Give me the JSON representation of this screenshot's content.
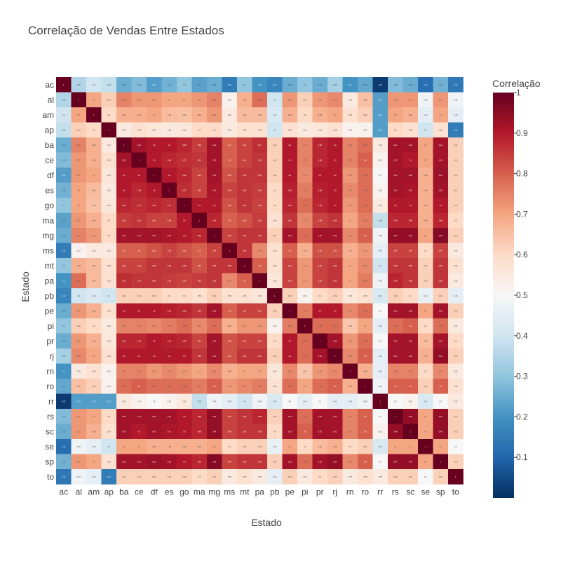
{
  "chart_data": {
    "type": "heatmap",
    "title": "Correlação de Vendas Entre Estados",
    "xlabel": "Estado",
    "ylabel": "Estado",
    "colorbar_title": "Correlação",
    "colorscale": "RdBu (reversed)",
    "zlim": [
      0.0,
      1.0
    ],
    "colorbar_ticks": [
      0.1,
      0.2,
      0.3,
      0.4,
      0.5,
      0.6,
      0.7,
      0.8,
      0.9,
      1
    ],
    "states": [
      "ac",
      "al",
      "am",
      "ap",
      "ba",
      "ce",
      "df",
      "es",
      "go",
      "ma",
      "mg",
      "ms",
      "mt",
      "pa",
      "pb",
      "pe",
      "pi",
      "pr",
      "rj",
      "rn",
      "ro",
      "rr",
      "rs",
      "sc",
      "se",
      "sp",
      "to"
    ],
    "z": [
      [
        1.0,
        0.35,
        0.4,
        0.38,
        0.25,
        0.28,
        0.22,
        0.26,
        0.3,
        0.23,
        0.25,
        0.15,
        0.3,
        0.2,
        0.17,
        0.25,
        0.3,
        0.25,
        0.33,
        0.2,
        0.24,
        0.02,
        0.28,
        0.25,
        0.12,
        0.26,
        0.14
      ],
      [
        0.35,
        1.0,
        0.7,
        0.62,
        0.75,
        0.72,
        0.72,
        0.7,
        0.7,
        0.72,
        0.75,
        0.52,
        0.68,
        0.78,
        0.4,
        0.72,
        0.62,
        0.72,
        0.74,
        0.55,
        0.65,
        0.22,
        0.72,
        0.72,
        0.48,
        0.72,
        0.48
      ],
      [
        0.4,
        0.7,
        1.0,
        0.6,
        0.68,
        0.68,
        0.7,
        0.66,
        0.65,
        0.68,
        0.72,
        0.55,
        0.66,
        0.66,
        0.42,
        0.68,
        0.6,
        0.68,
        0.7,
        0.58,
        0.62,
        0.22,
        0.7,
        0.68,
        0.45,
        0.7,
        0.45
      ],
      [
        0.38,
        0.62,
        0.6,
        1.0,
        0.55,
        0.58,
        0.56,
        0.55,
        0.56,
        0.6,
        0.6,
        0.55,
        0.58,
        0.58,
        0.4,
        0.58,
        0.55,
        0.56,
        0.58,
        0.52,
        0.52,
        0.22,
        0.6,
        0.58,
        0.4,
        0.58,
        0.15
      ],
      [
        0.25,
        0.75,
        0.68,
        0.55,
        1.0,
        0.92,
        0.9,
        0.9,
        0.88,
        0.85,
        0.92,
        0.8,
        0.84,
        0.87,
        0.62,
        0.9,
        0.75,
        0.88,
        0.9,
        0.75,
        0.78,
        0.55,
        0.92,
        0.92,
        0.7,
        0.92,
        0.62
      ],
      [
        0.28,
        0.72,
        0.68,
        0.58,
        0.92,
        1.0,
        0.9,
        0.88,
        0.87,
        0.86,
        0.92,
        0.8,
        0.84,
        0.86,
        0.62,
        0.9,
        0.75,
        0.88,
        0.9,
        0.75,
        0.8,
        0.52,
        0.92,
        0.9,
        0.7,
        0.92,
        0.62
      ],
      [
        0.22,
        0.72,
        0.7,
        0.56,
        0.9,
        0.9,
        1.0,
        0.9,
        0.88,
        0.84,
        0.92,
        0.82,
        0.86,
        0.86,
        0.62,
        0.9,
        0.74,
        0.9,
        0.9,
        0.72,
        0.78,
        0.5,
        0.92,
        0.92,
        0.68,
        0.93,
        0.62
      ],
      [
        0.26,
        0.7,
        0.66,
        0.55,
        0.9,
        0.88,
        0.9,
        1.0,
        0.87,
        0.84,
        0.91,
        0.84,
        0.86,
        0.85,
        0.6,
        0.89,
        0.76,
        0.89,
        0.9,
        0.74,
        0.78,
        0.52,
        0.92,
        0.91,
        0.68,
        0.92,
        0.62
      ],
      [
        0.3,
        0.7,
        0.65,
        0.56,
        0.88,
        0.87,
        0.88,
        0.87,
        1.0,
        0.9,
        0.9,
        0.82,
        0.86,
        0.84,
        0.6,
        0.88,
        0.78,
        0.88,
        0.9,
        0.72,
        0.78,
        0.55,
        0.9,
        0.9,
        0.68,
        0.9,
        0.62
      ],
      [
        0.23,
        0.72,
        0.68,
        0.6,
        0.85,
        0.86,
        0.84,
        0.84,
        0.9,
        1.0,
        0.88,
        0.8,
        0.82,
        0.85,
        0.58,
        0.86,
        0.74,
        0.84,
        0.86,
        0.7,
        0.76,
        0.38,
        0.88,
        0.88,
        0.68,
        0.88,
        0.6
      ],
      [
        0.25,
        0.75,
        0.72,
        0.6,
        0.92,
        0.92,
        0.92,
        0.91,
        0.9,
        0.88,
        1.0,
        0.84,
        0.86,
        0.86,
        0.62,
        0.92,
        0.78,
        0.92,
        0.92,
        0.74,
        0.8,
        0.48,
        0.94,
        0.94,
        0.7,
        0.96,
        0.62
      ],
      [
        0.15,
        0.52,
        0.55,
        0.55,
        0.8,
        0.8,
        0.82,
        0.84,
        0.82,
        0.8,
        0.84,
        1.0,
        0.86,
        0.74,
        0.58,
        0.8,
        0.68,
        0.82,
        0.82,
        0.68,
        0.72,
        0.45,
        0.84,
        0.84,
        0.6,
        0.84,
        0.55
      ],
      [
        0.3,
        0.68,
        0.66,
        0.58,
        0.84,
        0.84,
        0.86,
        0.86,
        0.86,
        0.82,
        0.86,
        0.86,
        1.0,
        0.8,
        0.58,
        0.84,
        0.72,
        0.84,
        0.86,
        0.7,
        0.74,
        0.4,
        0.86,
        0.86,
        0.62,
        0.86,
        0.58
      ],
      [
        0.2,
        0.78,
        0.66,
        0.58,
        0.87,
        0.86,
        0.86,
        0.85,
        0.84,
        0.85,
        0.86,
        0.74,
        0.8,
        1.0,
        0.56,
        0.84,
        0.72,
        0.84,
        0.86,
        0.7,
        0.76,
        0.48,
        0.88,
        0.86,
        0.62,
        0.86,
        0.55
      ],
      [
        0.17,
        0.4,
        0.42,
        0.4,
        0.62,
        0.62,
        0.62,
        0.6,
        0.6,
        0.58,
        0.62,
        0.58,
        0.58,
        0.56,
        1.0,
        0.62,
        0.52,
        0.6,
        0.62,
        0.56,
        0.58,
        0.42,
        0.62,
        0.6,
        0.46,
        0.62,
        0.45
      ],
      [
        0.25,
        0.72,
        0.68,
        0.58,
        0.9,
        0.9,
        0.9,
        0.89,
        0.88,
        0.86,
        0.92,
        0.8,
        0.84,
        0.84,
        0.62,
        1.0,
        0.76,
        0.9,
        0.9,
        0.74,
        0.78,
        0.5,
        0.92,
        0.92,
        0.7,
        0.92,
        0.62
      ],
      [
        0.3,
        0.62,
        0.6,
        0.55,
        0.75,
        0.75,
        0.74,
        0.76,
        0.78,
        0.74,
        0.78,
        0.68,
        0.72,
        0.72,
        0.52,
        0.76,
        1.0,
        0.78,
        0.78,
        0.64,
        0.7,
        0.45,
        0.78,
        0.8,
        0.6,
        0.78,
        0.55
      ],
      [
        0.25,
        0.72,
        0.68,
        0.56,
        0.88,
        0.88,
        0.9,
        0.89,
        0.88,
        0.84,
        0.92,
        0.82,
        0.84,
        0.84,
        0.6,
        0.9,
        0.78,
        1.0,
        0.92,
        0.72,
        0.78,
        0.5,
        0.92,
        0.92,
        0.66,
        0.92,
        0.6
      ],
      [
        0.33,
        0.74,
        0.7,
        0.58,
        0.9,
        0.9,
        0.9,
        0.9,
        0.9,
        0.86,
        0.92,
        0.82,
        0.86,
        0.86,
        0.62,
        0.9,
        0.78,
        0.92,
        1.0,
        0.74,
        0.8,
        0.45,
        0.92,
        0.92,
        0.68,
        0.94,
        0.62
      ],
      [
        0.2,
        0.55,
        0.58,
        0.52,
        0.75,
        0.75,
        0.72,
        0.74,
        0.72,
        0.7,
        0.74,
        0.68,
        0.7,
        0.7,
        0.56,
        0.74,
        0.64,
        0.72,
        0.74,
        1.0,
        0.68,
        0.45,
        0.75,
        0.75,
        0.6,
        0.74,
        0.55
      ],
      [
        0.24,
        0.65,
        0.62,
        0.52,
        0.78,
        0.8,
        0.78,
        0.78,
        0.78,
        0.76,
        0.8,
        0.72,
        0.74,
        0.76,
        0.58,
        0.78,
        0.7,
        0.78,
        0.8,
        0.68,
        1.0,
        0.48,
        0.8,
        0.8,
        0.62,
        0.8,
        0.58
      ],
      [
        0.02,
        0.22,
        0.22,
        0.22,
        0.55,
        0.52,
        0.5,
        0.52,
        0.55,
        0.38,
        0.48,
        0.45,
        0.4,
        0.48,
        0.42,
        0.5,
        0.45,
        0.5,
        0.45,
        0.45,
        0.48,
        1.0,
        0.5,
        0.52,
        0.42,
        0.5,
        0.55
      ],
      [
        0.28,
        0.72,
        0.7,
        0.6,
        0.92,
        0.92,
        0.92,
        0.92,
        0.9,
        0.88,
        0.94,
        0.84,
        0.86,
        0.88,
        0.62,
        0.92,
        0.78,
        0.92,
        0.92,
        0.75,
        0.8,
        0.5,
        1.0,
        0.94,
        0.7,
        0.94,
        0.62
      ],
      [
        0.25,
        0.72,
        0.68,
        0.58,
        0.92,
        0.9,
        0.92,
        0.91,
        0.9,
        0.88,
        0.94,
        0.84,
        0.86,
        0.86,
        0.6,
        0.92,
        0.8,
        0.92,
        0.92,
        0.75,
        0.8,
        0.52,
        0.94,
        1.0,
        0.7,
        0.94,
        0.62
      ],
      [
        0.12,
        0.48,
        0.45,
        0.4,
        0.7,
        0.7,
        0.68,
        0.68,
        0.68,
        0.68,
        0.7,
        0.6,
        0.62,
        0.62,
        0.46,
        0.7,
        0.6,
        0.66,
        0.68,
        0.6,
        0.62,
        0.42,
        0.7,
        0.7,
        1.0,
        0.7,
        0.5
      ],
      [
        0.26,
        0.72,
        0.7,
        0.58,
        0.92,
        0.92,
        0.93,
        0.92,
        0.9,
        0.88,
        0.96,
        0.84,
        0.86,
        0.86,
        0.62,
        0.92,
        0.78,
        0.92,
        0.94,
        0.74,
        0.8,
        0.5,
        0.94,
        0.94,
        0.7,
        1.0,
        0.62
      ],
      [
        0.14,
        0.48,
        0.45,
        0.15,
        0.62,
        0.62,
        0.62,
        0.62,
        0.62,
        0.6,
        0.62,
        0.55,
        0.58,
        0.55,
        0.45,
        0.62,
        0.55,
        0.6,
        0.62,
        0.55,
        0.58,
        0.55,
        0.62,
        0.62,
        0.5,
        0.62,
        1.0
      ]
    ]
  }
}
